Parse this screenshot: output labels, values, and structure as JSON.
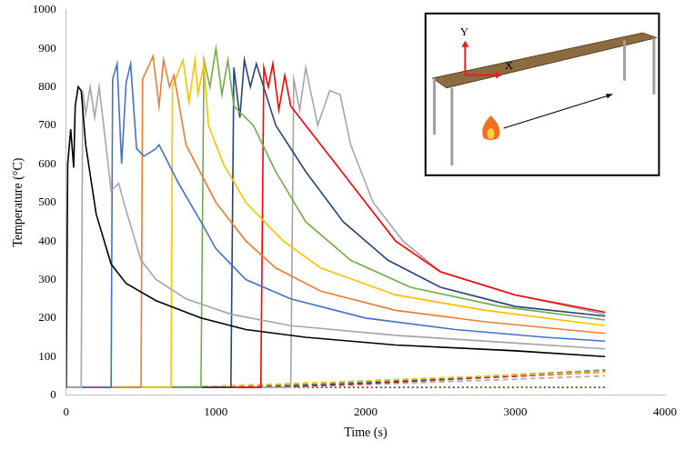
{
  "chart_data": {
    "type": "line",
    "x_label": "Time (s)",
    "y_label": "Temperature (°C)",
    "annotations": [
      "Y",
      "X"
    ],
    "xlim": [
      0,
      4000
    ],
    "xticks": [
      0,
      1000,
      2000,
      3000,
      4000
    ],
    "ylim": [
      0,
      1000
    ],
    "yticks": [
      0,
      100,
      200,
      300,
      400,
      500,
      600,
      700,
      800,
      900,
      1000
    ],
    "grid": false,
    "series": [
      {
        "color": "#000000",
        "line_style": "solid",
        "x": [
          0,
          10,
          30,
          50,
          60,
          80,
          100,
          130,
          200,
          300,
          400,
          600,
          900,
          1200,
          1600,
          2200,
          3000,
          3600
        ],
        "values": [
          20,
          600,
          690,
          590,
          750,
          800,
          790,
          650,
          470,
          340,
          290,
          245,
          200,
          170,
          150,
          130,
          115,
          100
        ]
      },
      {
        "color": "#a6a6a6",
        "line_style": "solid",
        "x": [
          0,
          100,
          110,
          130,
          160,
          190,
          220,
          250,
          300,
          350,
          400,
          500,
          600,
          800,
          1100,
          1500,
          2200,
          3000,
          3600
        ],
        "values": [
          20,
          20,
          790,
          730,
          800,
          720,
          800,
          700,
          530,
          550,
          480,
          350,
          300,
          250,
          210,
          180,
          155,
          135,
          120
        ]
      },
      {
        "color": "#4472c4",
        "line_style": "solid",
        "x": [
          0,
          300,
          310,
          340,
          370,
          400,
          430,
          470,
          520,
          600,
          620,
          750,
          900,
          1000,
          1200,
          1500,
          2000,
          2600,
          3200,
          3600
        ],
        "values": [
          20,
          20,
          820,
          860,
          600,
          810,
          860,
          640,
          620,
          640,
          650,
          550,
          450,
          380,
          300,
          250,
          200,
          170,
          150,
          140
        ]
      },
      {
        "color": "#ed7d31",
        "line_style": "solid",
        "x": [
          0,
          500,
          510,
          580,
          620,
          650,
          690,
          720,
          800,
          1000,
          1200,
          1400,
          1700,
          2200,
          2800,
          3600
        ],
        "values": [
          20,
          20,
          820,
          880,
          750,
          870,
          800,
          830,
          650,
          500,
          400,
          330,
          270,
          220,
          190,
          160
        ]
      },
      {
        "color": "#ffc000",
        "line_style": "solid",
        "x": [
          0,
          700,
          710,
          780,
          820,
          860,
          880,
          920,
          950,
          1050,
          1200,
          1450,
          1700,
          2200,
          2800,
          3600
        ],
        "values": [
          20,
          20,
          800,
          870,
          760,
          870,
          780,
          860,
          700,
          600,
          500,
          400,
          330,
          260,
          220,
          180
        ]
      },
      {
        "color": "#70ad47",
        "line_style": "solid",
        "x": [
          0,
          900,
          920,
          960,
          1000,
          1040,
          1080,
          1120,
          1250,
          1400,
          1600,
          1900,
          2300,
          2900,
          3600
        ],
        "values": [
          20,
          20,
          870,
          800,
          900,
          780,
          870,
          750,
          700,
          580,
          450,
          350,
          280,
          230,
          195
        ]
      },
      {
        "color": "#264478",
        "line_style": "solid",
        "x": [
          0,
          1100,
          1120,
          1160,
          1190,
          1230,
          1270,
          1400,
          1600,
          1850,
          2150,
          2500,
          3000,
          3600
        ],
        "values": [
          20,
          20,
          850,
          720,
          870,
          800,
          860,
          700,
          580,
          450,
          350,
          280,
          230,
          205
        ]
      },
      {
        "color": "#ff0000",
        "line_style": "solid",
        "x": [
          0,
          1300,
          1320,
          1350,
          1380,
          1420,
          1460,
          1500,
          1600,
          1800,
          2000,
          2200,
          2500,
          3000,
          3600
        ],
        "values": [
          20,
          20,
          850,
          800,
          860,
          740,
          830,
          750,
          700,
          600,
          500,
          400,
          320,
          260,
          215
        ]
      },
      {
        "color": "#a5a5a5",
        "line_style": "solid",
        "x": [
          0,
          1500,
          1520,
          1560,
          1600,
          1680,
          1760,
          1830,
          1900,
          2050,
          2250,
          2500,
          3000,
          3600
        ],
        "values": [
          20,
          20,
          820,
          740,
          850,
          700,
          790,
          780,
          650,
          500,
          400,
          320,
          260,
          210
        ]
      },
      {
        "color": "#ffc000",
        "line_style": "dashed",
        "x": [
          0,
          700,
          1500,
          2500,
          3600
        ],
        "values": [
          20,
          20,
          30,
          45,
          60
        ]
      },
      {
        "color": "#70ad47",
        "line_style": "dashed",
        "x": [
          0,
          900,
          1700,
          2600,
          3600
        ],
        "values": [
          20,
          20,
          30,
          45,
          65
        ]
      },
      {
        "color": "#264478",
        "line_style": "dashed",
        "x": [
          0,
          1100,
          1900,
          2700,
          3600
        ],
        "values": [
          20,
          20,
          30,
          45,
          65
        ]
      },
      {
        "color": "#ff0000",
        "line_style": "dashed",
        "x": [
          0,
          1300,
          2000,
          2800,
          3600
        ],
        "values": [
          20,
          20,
          30,
          45,
          60
        ]
      },
      {
        "color": "#a5a5a5",
        "line_style": "dashed",
        "x": [
          0,
          1500,
          2200,
          2900,
          3600
        ],
        "values": [
          20,
          20,
          30,
          40,
          50
        ]
      },
      {
        "color": "#843c0c",
        "line_style": "dotted",
        "x": [
          0,
          3600
        ],
        "values": [
          20,
          20
        ]
      }
    ]
  }
}
